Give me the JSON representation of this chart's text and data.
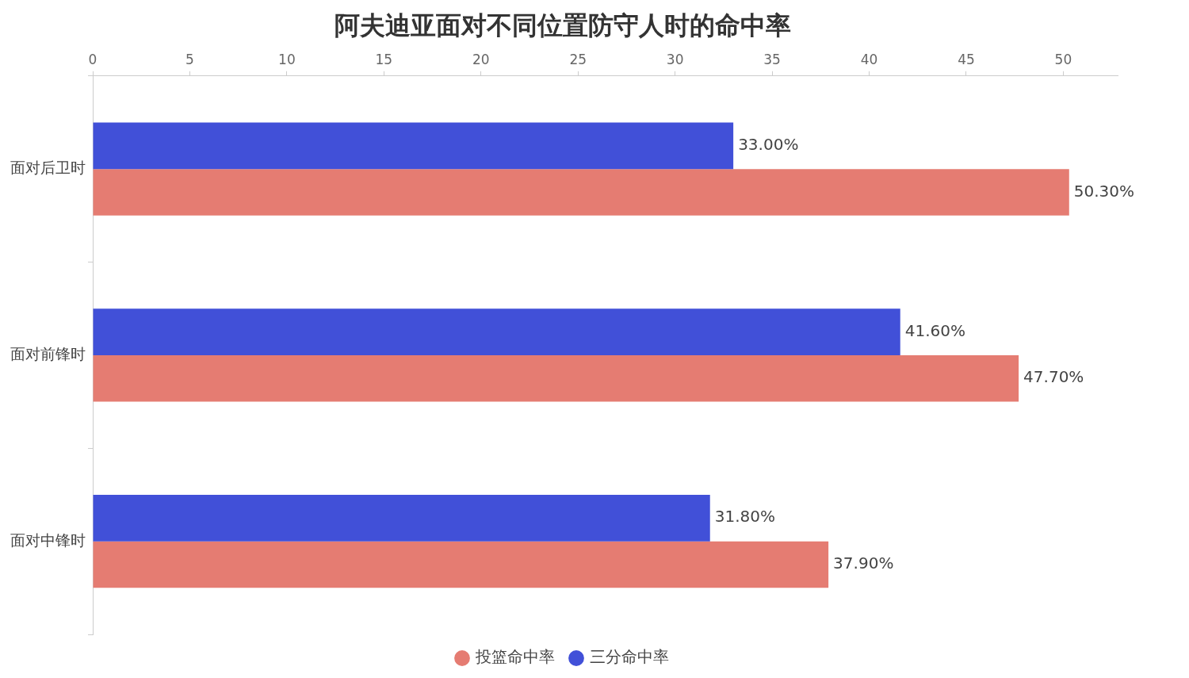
{
  "chart_data": {
    "type": "bar",
    "orientation": "horizontal",
    "title": "阿夫迪亚面对不同位置防守人时的命中率",
    "categories": [
      "面对后卫时",
      "面对前锋时",
      "面对中锋时"
    ],
    "series": [
      {
        "name": "投篮命中率",
        "color": "#e57c72",
        "values": [
          50.3,
          47.7,
          37.9
        ],
        "value_labels": [
          "50.30%",
          "47.70%",
          "37.90%"
        ]
      },
      {
        "name": "三分命中率",
        "color": "#4150d8",
        "values": [
          33.0,
          41.6,
          31.8
        ],
        "value_labels": [
          "33.00%",
          "41.60%",
          "31.80%"
        ]
      }
    ],
    "xlim": [
      0,
      52.8
    ],
    "xticks": [
      0,
      5,
      10,
      15,
      20,
      25,
      30,
      35,
      40,
      45,
      50
    ],
    "grid": false,
    "legend": "bottom"
  }
}
